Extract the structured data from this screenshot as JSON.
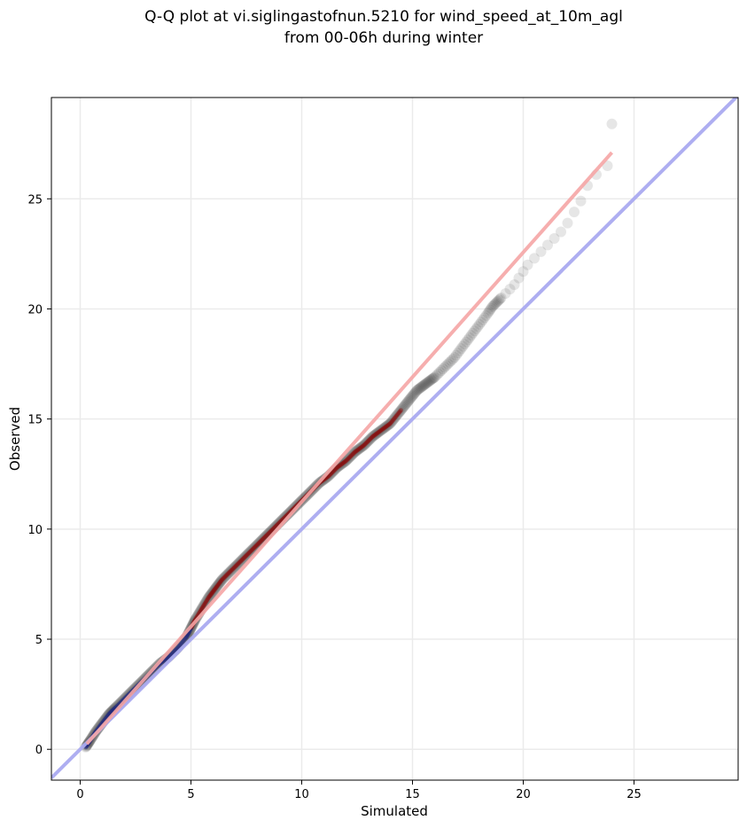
{
  "chart_data": {
    "type": "scatter",
    "title_lines": [
      "Q-Q plot at vi.siglingastofnun.5210 for wind_speed_at_10m_agl",
      "from 00-06h during winter"
    ],
    "xlabel": "Simulated",
    "ylabel": "Observed",
    "xlim": [
      -1.3,
      29.7
    ],
    "ylim": [
      -1.4,
      29.6
    ],
    "xticks": [
      0,
      5,
      10,
      15,
      20,
      25
    ],
    "yticks": [
      0,
      5,
      10,
      15,
      20,
      25
    ],
    "grid": true,
    "colors": {
      "points": "#333333",
      "identity_line": "#aaaaf0",
      "fit_line": "#f5a5a5",
      "low_overlay": "#1a237e",
      "mid_overlay": "#8b0000",
      "grid": "#ebebeb"
    },
    "series": [
      {
        "kind": "points",
        "x": [
          0.25,
          0.45,
          0.7,
          1.0,
          1.3,
          1.6,
          2.0,
          2.4,
          2.8,
          3.2,
          3.6,
          4.0,
          4.4,
          4.8,
          5.0,
          5.2,
          5.5,
          5.8,
          6.1,
          6.4,
          6.8,
          7.2,
          7.6,
          8.0,
          8.4,
          8.8,
          9.2,
          9.6,
          10.0,
          10.4,
          10.8,
          11.2,
          11.6,
          12.0,
          12.4,
          12.8,
          13.2,
          13.6,
          14.0,
          14.4,
          14.8,
          15.2,
          15.6,
          16.0,
          16.3,
          16.6,
          16.9,
          17.2,
          17.5,
          17.8,
          18.1,
          18.4,
          18.6,
          18.8,
          19.0,
          19.2,
          19.4,
          19.6,
          19.8,
          20.0,
          20.2,
          20.5,
          20.8,
          21.1,
          21.4,
          21.7,
          22.0,
          22.3,
          22.6,
          22.9,
          23.3,
          23.8,
          24.0
        ],
        "y": [
          0.1,
          0.4,
          0.8,
          1.2,
          1.6,
          1.9,
          2.3,
          2.7,
          3.1,
          3.5,
          3.9,
          4.2,
          4.6,
          5.1,
          5.5,
          5.9,
          6.4,
          6.9,
          7.3,
          7.7,
          8.1,
          8.5,
          8.9,
          9.3,
          9.7,
          10.1,
          10.5,
          10.9,
          11.3,
          11.7,
          12.1,
          12.4,
          12.8,
          13.1,
          13.5,
          13.8,
          14.2,
          14.5,
          14.8,
          15.3,
          15.8,
          16.3,
          16.6,
          16.9,
          17.2,
          17.5,
          17.8,
          18.2,
          18.6,
          19.0,
          19.4,
          19.8,
          20.1,
          20.3,
          20.5,
          20.7,
          20.9,
          21.1,
          21.4,
          21.7,
          22.0,
          22.3,
          22.6,
          22.9,
          23.2,
          23.5,
          23.9,
          24.4,
          24.9,
          25.6,
          26.1,
          26.5,
          28.4
        ]
      },
      {
        "kind": "identity_line",
        "x": [
          -1.3,
          29.7
        ],
        "y": [
          -1.3,
          29.7
        ]
      },
      {
        "kind": "fit_line",
        "x": [
          0.3,
          24.0
        ],
        "y": [
          0.25,
          27.1
        ]
      }
    ]
  }
}
